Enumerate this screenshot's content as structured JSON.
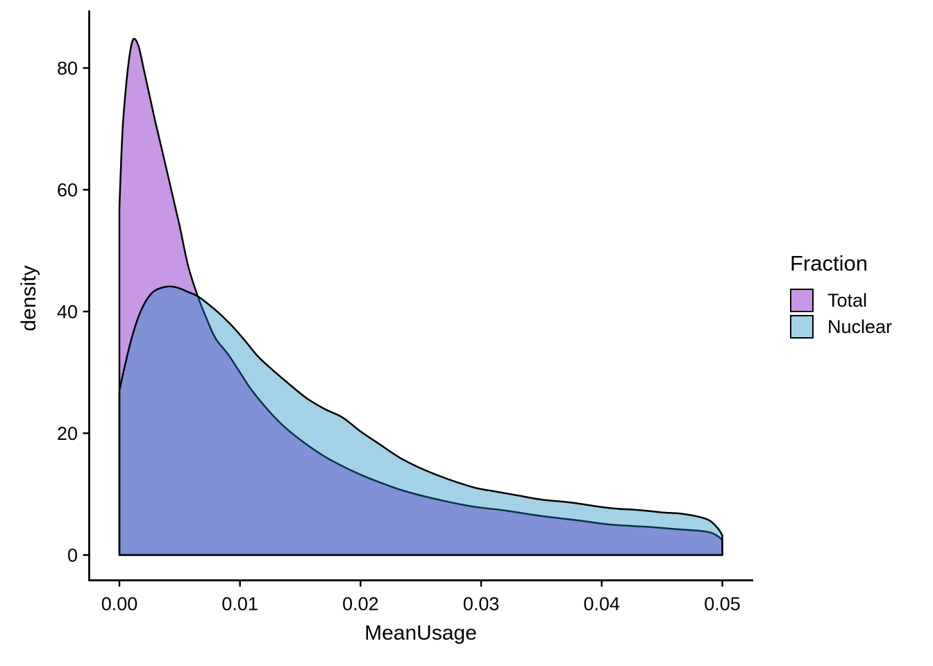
{
  "chart_data": {
    "type": "area",
    "subtype": "overlapping-density",
    "title": "",
    "xlabel": "MeanUsage",
    "ylabel": "density",
    "xlim": [
      0,
      0.05
    ],
    "ylim": [
      0,
      85
    ],
    "grid": false,
    "x_ticks": [
      {
        "value": 0.0,
        "label": "0.00"
      },
      {
        "value": 0.01,
        "label": "0.01"
      },
      {
        "value": 0.02,
        "label": "0.02"
      },
      {
        "value": 0.03,
        "label": "0.03"
      },
      {
        "value": 0.04,
        "label": "0.04"
      },
      {
        "value": 0.05,
        "label": "0.05"
      }
    ],
    "y_ticks": [
      {
        "value": 0,
        "label": "0"
      },
      {
        "value": 20,
        "label": "20"
      },
      {
        "value": 40,
        "label": "40"
      },
      {
        "value": 60,
        "label": "60"
      },
      {
        "value": 80,
        "label": "80"
      }
    ],
    "legend": {
      "title": "Fraction",
      "position": "right",
      "entries": [
        {
          "label": "Total",
          "color": "#C798E6"
        },
        {
          "label": "Nuclear",
          "color": "#A3D1E6"
        }
      ]
    },
    "colors": {
      "total_fill": "#C798E6",
      "nuclear_fill_base": "#0D86BD",
      "nuclear_fill_alpha": 0.38,
      "overlap_appearance": "#8190D6",
      "outline": "#000000",
      "axis": "#000000",
      "text": "#000000"
    },
    "series": [
      {
        "name": "Total",
        "points": [
          [
            0,
            57
          ],
          [
            0.00015,
            65
          ],
          [
            0.0003,
            71
          ],
          [
            0.0006,
            78
          ],
          [
            0.0009,
            82.8
          ],
          [
            0.0012,
            84.8
          ],
          [
            0.0016,
            83.5
          ],
          [
            0.002,
            80
          ],
          [
            0.0025,
            75.5
          ],
          [
            0.003,
            71
          ],
          [
            0.0036,
            66
          ],
          [
            0.0043,
            60
          ],
          [
            0.005,
            54
          ],
          [
            0.0057,
            47.5
          ],
          [
            0.0065,
            42.5
          ],
          [
            0.0073,
            38.5
          ],
          [
            0.008,
            35.5
          ],
          [
            0.009,
            33
          ],
          [
            0.01,
            30
          ],
          [
            0.011,
            27
          ],
          [
            0.0127,
            23
          ],
          [
            0.014,
            20.5
          ],
          [
            0.0155,
            18.2
          ],
          [
            0.017,
            16.2
          ],
          [
            0.0185,
            14.6
          ],
          [
            0.02,
            13.2
          ],
          [
            0.0215,
            12
          ],
          [
            0.0235,
            10.6
          ],
          [
            0.026,
            9.3
          ],
          [
            0.0292,
            8
          ],
          [
            0.032,
            7.3
          ],
          [
            0.035,
            6.4
          ],
          [
            0.038,
            5.7
          ],
          [
            0.0407,
            5
          ],
          [
            0.044,
            4.6
          ],
          [
            0.0465,
            4.2
          ],
          [
            0.048,
            4
          ],
          [
            0.049,
            3.7
          ],
          [
            0.0497,
            3
          ],
          [
            0.05,
            2.4
          ]
        ]
      },
      {
        "name": "Nuclear",
        "points": [
          [
            0,
            27
          ],
          [
            0.0005,
            31.5
          ],
          [
            0.001,
            35.5
          ],
          [
            0.0015,
            38.7
          ],
          [
            0.002,
            41
          ],
          [
            0.0025,
            42.6
          ],
          [
            0.003,
            43.5
          ],
          [
            0.0037,
            44
          ],
          [
            0.0043,
            44.1
          ],
          [
            0.005,
            43.8
          ],
          [
            0.0057,
            43.2
          ],
          [
            0.0065,
            42.5
          ],
          [
            0.0075,
            41
          ],
          [
            0.0085,
            39.3
          ],
          [
            0.0095,
            37.3
          ],
          [
            0.0105,
            35
          ],
          [
            0.0115,
            32.6
          ],
          [
            0.0127,
            30.4
          ],
          [
            0.014,
            28.2
          ],
          [
            0.0155,
            25.8
          ],
          [
            0.017,
            24
          ],
          [
            0.0185,
            22.6
          ],
          [
            0.02,
            20.3
          ],
          [
            0.0215,
            18.3
          ],
          [
            0.0235,
            15.7
          ],
          [
            0.026,
            13.4
          ],
          [
            0.0292,
            11.2
          ],
          [
            0.031,
            10.5
          ],
          [
            0.033,
            9.8
          ],
          [
            0.035,
            9.1
          ],
          [
            0.0375,
            8.6
          ],
          [
            0.0407,
            7.7
          ],
          [
            0.043,
            7.4
          ],
          [
            0.045,
            7
          ],
          [
            0.0465,
            6.8
          ],
          [
            0.048,
            6.3
          ],
          [
            0.049,
            5.6
          ],
          [
            0.0497,
            4.2
          ],
          [
            0.05,
            3.2
          ]
        ]
      }
    ]
  }
}
